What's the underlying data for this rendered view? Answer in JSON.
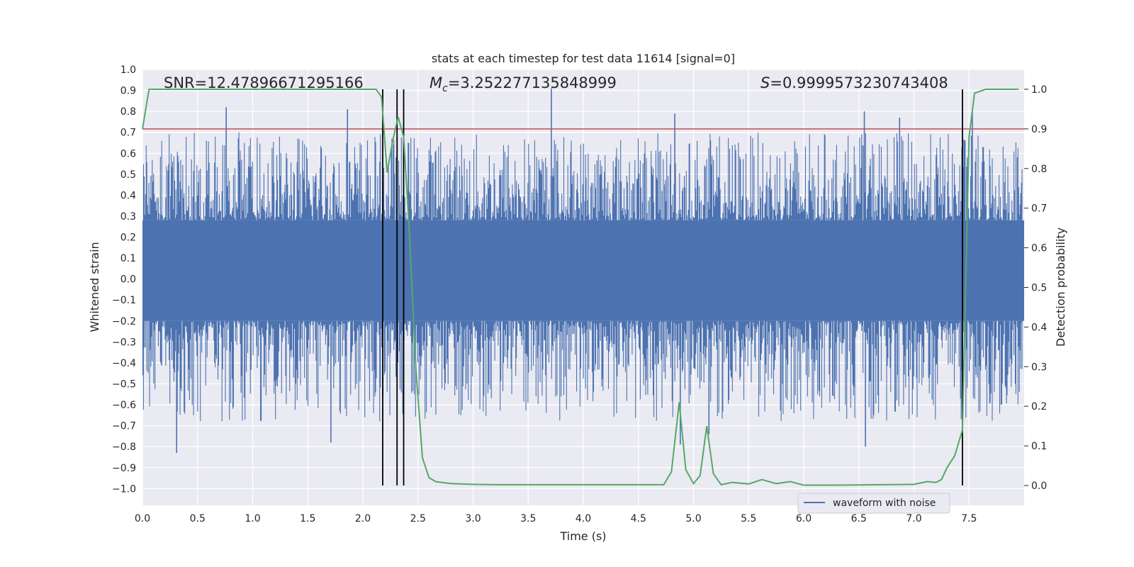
{
  "chart_data": {
    "type": "line",
    "title": "stats at each timestep for test data 11614 [signal=0]",
    "xlabel": "Time (s)",
    "ylabel": "Whitened strain",
    "y2label": "Detection probability",
    "xlim": [
      0.0,
      8.0
    ],
    "ylim": [
      -1.08,
      1.0
    ],
    "y2lim": [
      -0.05,
      1.05
    ],
    "xticks": [
      "0.0",
      "0.5",
      "1.0",
      "1.5",
      "2.0",
      "2.5",
      "3.0",
      "3.5",
      "4.0",
      "4.5",
      "5.0",
      "5.5",
      "6.0",
      "6.5",
      "7.0",
      "7.5"
    ],
    "yticks": [
      "1.0",
      "0.9",
      "0.8",
      "0.7",
      "0.6",
      "0.5",
      "0.4",
      "0.3",
      "0.2",
      "0.1",
      "0.0",
      "−0.1",
      "−0.2",
      "−0.3",
      "−0.4",
      "−0.5",
      "−0.6",
      "−0.7",
      "−0.8",
      "−0.9",
      "−1.0"
    ],
    "y2ticks": [
      "1.0",
      "0.9",
      "0.8",
      "0.7",
      "0.6",
      "0.5",
      "0.4",
      "0.3",
      "0.2",
      "0.1",
      "0.0"
    ],
    "annotations": {
      "snr": "SNR=12.47896671295166",
      "mc_symbol": "M",
      "mc_sub": "c",
      "mc_value": "=3.252277135848999",
      "s_symbol": "S",
      "s_value": "=0.9999573230743408"
    },
    "legend": {
      "label": "waveform with noise",
      "loc": "lower-right"
    },
    "waveform": {
      "name": "waveform with noise",
      "color": "#4c72b0",
      "band_low": -0.2,
      "band_high": 0.28,
      "spikes": [
        {
          "x": 0.76,
          "v": 0.82
        },
        {
          "x": 1.86,
          "v": 0.81
        },
        {
          "x": 3.71,
          "v": 0.91
        },
        {
          "x": 4.83,
          "v": 0.79
        },
        {
          "x": 6.55,
          "v": 0.8
        },
        {
          "x": 6.87,
          "v": 0.77
        },
        {
          "x": 7.53,
          "v": 0.8
        },
        {
          "x": 0.31,
          "v": -0.83
        },
        {
          "x": 1.71,
          "v": -0.78
        },
        {
          "x": 4.88,
          "v": -0.79
        },
        {
          "x": 6.56,
          "v": -0.8
        },
        {
          "x": 5.14,
          "v": -0.74
        }
      ]
    },
    "probability": {
      "name": "Detection probability",
      "color": "#55a868",
      "x": [
        0.0,
        0.06,
        0.15,
        0.3,
        0.6,
        1.0,
        1.5,
        1.9,
        2.12,
        2.17,
        2.22,
        2.27,
        2.32,
        2.37,
        2.42,
        2.48,
        2.54,
        2.6,
        2.66,
        2.8,
        3.0,
        3.2,
        3.5,
        4.0,
        4.5,
        4.73,
        4.8,
        4.87,
        4.93,
        5.0,
        5.06,
        5.12,
        5.18,
        5.25,
        5.35,
        5.5,
        5.62,
        5.75,
        5.88,
        6.0,
        6.3,
        6.7,
        7.0,
        7.12,
        7.2,
        7.25,
        7.3,
        7.37,
        7.44,
        7.5,
        7.55,
        7.65,
        7.8,
        7.95
      ],
      "y": [
        0.9,
        1.0,
        1.0,
        1.0,
        1.0,
        1.0,
        1.0,
        1.0,
        1.0,
        0.98,
        0.79,
        0.87,
        0.93,
        0.88,
        0.65,
        0.3,
        0.07,
        0.02,
        0.01,
        0.005,
        0.003,
        0.002,
        0.002,
        0.002,
        0.002,
        0.002,
        0.035,
        0.21,
        0.04,
        0.005,
        0.025,
        0.15,
        0.03,
        0.002,
        0.008,
        0.004,
        0.015,
        0.005,
        0.01,
        0.001,
        0.001,
        0.002,
        0.003,
        0.01,
        0.008,
        0.015,
        0.045,
        0.075,
        0.14,
        0.88,
        0.99,
        1.0,
        1.0,
        1.0
      ]
    },
    "threshold": {
      "name": "threshold",
      "y2": 0.9,
      "color": "#c44e52"
    },
    "vlines": [
      {
        "x": 2.18
      },
      {
        "x": 2.31
      },
      {
        "x": 2.37
      },
      {
        "x": 7.44
      }
    ]
  }
}
